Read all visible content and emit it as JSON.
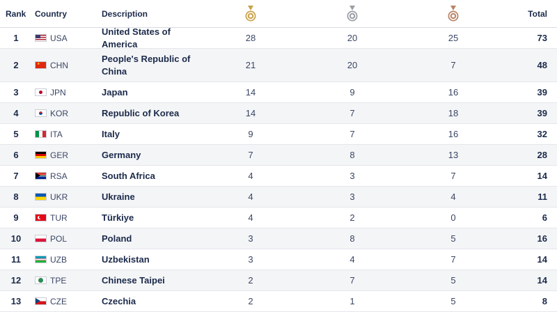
{
  "header": {
    "rank": "Rank",
    "country": "Country",
    "description": "Description",
    "gold_icon": "gold-medal-icon",
    "silver_icon": "silver-medal-icon",
    "bronze_icon": "bronze-medal-icon",
    "total": "Total"
  },
  "colors": {
    "gold": "#c9a24a",
    "silver": "#9a9ea4",
    "bronze": "#b98466",
    "text": "#1b2a4a",
    "alt_row": "#f4f5f7"
  },
  "rows": [
    {
      "rank": "1",
      "code": "USA",
      "name": "United States of America",
      "gold": "28",
      "silver": "20",
      "bronze": "25",
      "total": "73"
    },
    {
      "rank": "2",
      "code": "CHN",
      "name": "People's Republic of China",
      "gold": "21",
      "silver": "20",
      "bronze": "7",
      "total": "48"
    },
    {
      "rank": "3",
      "code": "JPN",
      "name": "Japan",
      "gold": "14",
      "silver": "9",
      "bronze": "16",
      "total": "39"
    },
    {
      "rank": "4",
      "code": "KOR",
      "name": "Republic of Korea",
      "gold": "14",
      "silver": "7",
      "bronze": "18",
      "total": "39"
    },
    {
      "rank": "5",
      "code": "ITA",
      "name": "Italy",
      "gold": "9",
      "silver": "7",
      "bronze": "16",
      "total": "32"
    },
    {
      "rank": "6",
      "code": "GER",
      "name": "Germany",
      "gold": "7",
      "silver": "8",
      "bronze": "13",
      "total": "28"
    },
    {
      "rank": "7",
      "code": "RSA",
      "name": "South Africa",
      "gold": "4",
      "silver": "3",
      "bronze": "7",
      "total": "14"
    },
    {
      "rank": "8",
      "code": "UKR",
      "name": "Ukraine",
      "gold": "4",
      "silver": "3",
      "bronze": "4",
      "total": "11"
    },
    {
      "rank": "9",
      "code": "TUR",
      "name": "Türkiye",
      "gold": "4",
      "silver": "2",
      "bronze": "0",
      "total": "6"
    },
    {
      "rank": "10",
      "code": "POL",
      "name": "Poland",
      "gold": "3",
      "silver": "8",
      "bronze": "5",
      "total": "16"
    },
    {
      "rank": "11",
      "code": "UZB",
      "name": "Uzbekistan",
      "gold": "3",
      "silver": "4",
      "bronze": "7",
      "total": "14"
    },
    {
      "rank": "12",
      "code": "TPE",
      "name": "Chinese Taipei",
      "gold": "2",
      "silver": "7",
      "bronze": "5",
      "total": "14"
    },
    {
      "rank": "13",
      "code": "CZE",
      "name": "Czechia",
      "gold": "2",
      "silver": "1",
      "bronze": "5",
      "total": "8"
    }
  ]
}
